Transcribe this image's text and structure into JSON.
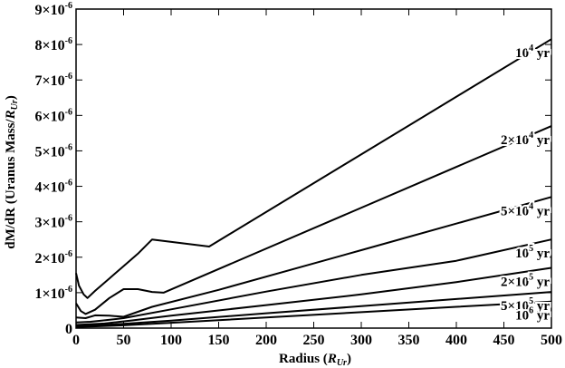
{
  "chart_data": {
    "type": "line",
    "xlabel": "Radius (R_Ur)",
    "ylabel": "dM/dR (Uranus Mass/R_Ur)",
    "xlim": [
      0,
      500
    ],
    "ylim": [
      0,
      9e-06
    ],
    "x_ticks": [
      0,
      50,
      100,
      150,
      200,
      250,
      300,
      350,
      400,
      450,
      500
    ],
    "y_ticks": [
      0,
      1e-06,
      2e-06,
      3e-06,
      4e-06,
      5e-06,
      6e-06,
      7e-06,
      8e-06,
      9e-06
    ],
    "y_tick_labels": [
      {
        "base": "0",
        "exp": ""
      },
      {
        "base": "1×10",
        "exp": "-6"
      },
      {
        "base": "2×10",
        "exp": "-6"
      },
      {
        "base": "3×10",
        "exp": "-6"
      },
      {
        "base": "4×10",
        "exp": "-6"
      },
      {
        "base": "5×10",
        "exp": "-6"
      },
      {
        "base": "6×10",
        "exp": "-6"
      },
      {
        "base": "7×10",
        "exp": "-6"
      },
      {
        "base": "8×10",
        "exp": "-6"
      },
      {
        "base": "9×10",
        "exp": "-6"
      }
    ],
    "grid": false,
    "series": [
      {
        "label_base": "10",
        "label_exp": "4",
        "label_unit": " yr",
        "points": [
          [
            0,
            1.55e-06
          ],
          [
            3,
            1.2e-06
          ],
          [
            8,
            9.5e-07
          ],
          [
            12,
            8.5e-07
          ],
          [
            20,
            1.05e-06
          ],
          [
            35,
            1.4e-06
          ],
          [
            50,
            1.75e-06
          ],
          [
            65,
            2.1e-06
          ],
          [
            80,
            2.5e-06
          ],
          [
            110,
            2.4e-06
          ],
          [
            140,
            2.3e-06
          ],
          [
            500,
            8.15e-06
          ]
        ]
      },
      {
        "label_base": "2×10",
        "label_exp": "4",
        "label_unit": " yr",
        "points": [
          [
            0,
            7e-07
          ],
          [
            5,
            4.8e-07
          ],
          [
            10,
            4e-07
          ],
          [
            20,
            5.2e-07
          ],
          [
            35,
            8.5e-07
          ],
          [
            50,
            1.1e-06
          ],
          [
            65,
            1.1e-06
          ],
          [
            80,
            1.02e-06
          ],
          [
            92,
            1e-06
          ],
          [
            500,
            5.7e-06
          ]
        ]
      },
      {
        "label_base": "5×10",
        "label_exp": "4",
        "label_unit": " yr",
        "points": [
          [
            0,
            3e-07
          ],
          [
            10,
            2.8e-07
          ],
          [
            20,
            3.6e-07
          ],
          [
            35,
            3.5e-07
          ],
          [
            50,
            3.2e-07
          ],
          [
            80,
            6e-07
          ],
          [
            150,
            1.08e-06
          ],
          [
            300,
            2.2e-06
          ],
          [
            500,
            3.7e-06
          ]
        ]
      },
      {
        "label_base": "10",
        "label_exp": "5",
        "label_unit": " yr",
        "points": [
          [
            0,
            1.6e-07
          ],
          [
            15,
            1.8e-07
          ],
          [
            30,
            2.2e-07
          ],
          [
            50,
            2.8e-07
          ],
          [
            100,
            5.3e-07
          ],
          [
            200,
            1.03e-06
          ],
          [
            300,
            1.5e-06
          ],
          [
            400,
            1.9e-06
          ],
          [
            500,
            2.5e-06
          ]
        ]
      },
      {
        "label_base": "2×10",
        "label_exp": "5",
        "label_unit": " yr",
        "points": [
          [
            0,
            9e-08
          ],
          [
            30,
            1.3e-07
          ],
          [
            60,
            2.2e-07
          ],
          [
            100,
            3.5e-07
          ],
          [
            200,
            6.5e-07
          ],
          [
            300,
            9.5e-07
          ],
          [
            400,
            1.3e-06
          ],
          [
            500,
            1.7e-06
          ]
        ]
      },
      {
        "label_base": "5×10",
        "label_exp": "5",
        "label_unit": " yr",
        "points": [
          [
            0,
            5e-08
          ],
          [
            50,
            1.2e-07
          ],
          [
            100,
            2.1e-07
          ],
          [
            200,
            4.2e-07
          ],
          [
            300,
            6.2e-07
          ],
          [
            400,
            8.2e-07
          ],
          [
            500,
            1.02e-06
          ]
        ]
      },
      {
        "label_base": "10",
        "label_exp": "6",
        "label_unit": " yr",
        "points": [
          [
            0,
            3e-08
          ],
          [
            50,
            8e-08
          ],
          [
            100,
            1.5e-07
          ],
          [
            200,
            3e-07
          ],
          [
            300,
            4.5e-07
          ],
          [
            400,
            6e-07
          ],
          [
            500,
            7.5e-07
          ]
        ]
      }
    ]
  }
}
